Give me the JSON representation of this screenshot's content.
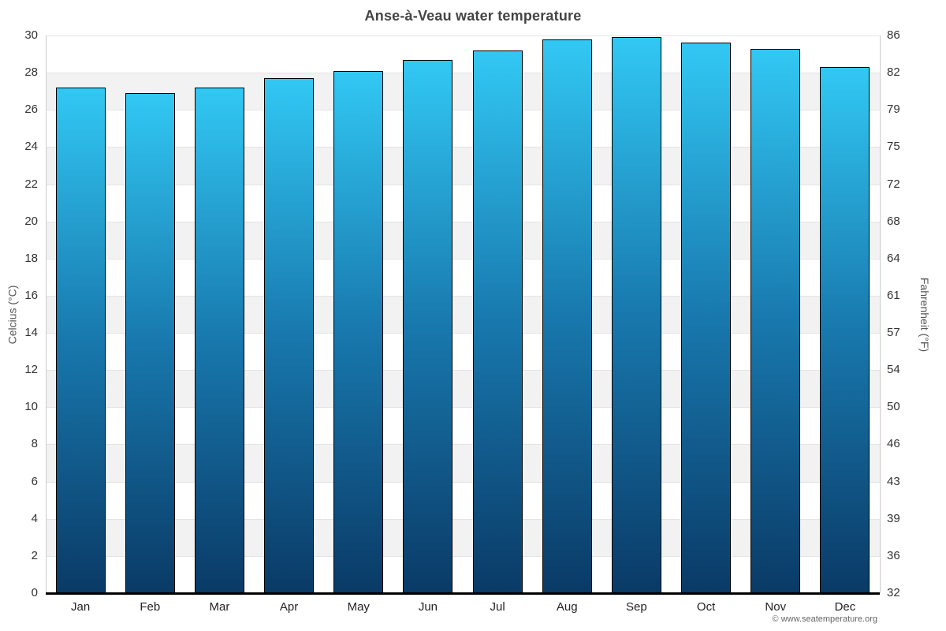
{
  "title": "Anse-à-Veau water temperature",
  "footer": "© www.seatemperature.org",
  "chart_data": {
    "type": "bar",
    "title": "Anse-à-Veau water temperature",
    "categories": [
      "Jan",
      "Feb",
      "Mar",
      "Apr",
      "May",
      "Jun",
      "Jul",
      "Aug",
      "Sep",
      "Oct",
      "Nov",
      "Dec"
    ],
    "values": [
      27.2,
      26.9,
      27.2,
      27.7,
      28.1,
      28.7,
      29.2,
      29.8,
      29.9,
      29.6,
      29.3,
      28.3
    ],
    "unit": "°C",
    "ylabel_left": "Celcius (°C)",
    "ylabel_right": "Fahrenheit (°F)",
    "ylim": [
      0,
      30
    ],
    "yticks": [
      {
        "c": 30,
        "f": 86
      },
      {
        "c": 28,
        "f": 82
      },
      {
        "c": 26,
        "f": 79
      },
      {
        "c": 24,
        "f": 75
      },
      {
        "c": 22,
        "f": 72
      },
      {
        "c": 20,
        "f": 68
      },
      {
        "c": 18,
        "f": 64
      },
      {
        "c": 16,
        "f": 61
      },
      {
        "c": 14,
        "f": 57
      },
      {
        "c": 12,
        "f": 54
      },
      {
        "c": 10,
        "f": 50
      },
      {
        "c": 8,
        "f": 46
      },
      {
        "c": 6,
        "f": 43
      },
      {
        "c": 4,
        "f": 39
      },
      {
        "c": 2,
        "f": 36
      },
      {
        "c": 0,
        "f": 32
      }
    ],
    "grid": "alternating horizontal bands every 2°C, legend off",
    "legend": null,
    "colors": {
      "bar_gradient_top": "#32c8f3",
      "bar_gradient_mid": "#1878ad",
      "bar_gradient_bottom": "#0a3a66",
      "bar_border": "#000000",
      "band_gray": "#f2f2f2",
      "gridline": "#e4e4e4",
      "axis_side_line": "#cccccc",
      "axis_bottom_line": "#000000",
      "title_text": "#444444",
      "tick_text": "#333333",
      "footer_text": "#666666"
    }
  }
}
